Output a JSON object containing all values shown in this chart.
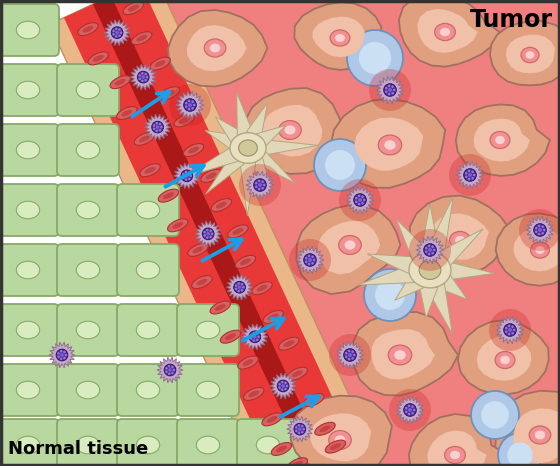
{
  "fig_width": 5.6,
  "fig_height": 4.66,
  "dpi": 100,
  "bg_color": "#f08080",
  "normal_tissue_bg": "#ffffff",
  "tumor_label": "Tumor",
  "normal_label": "Normal tissue",
  "arrow_color": "#1a9ee8",
  "tumor_cell_fill": "#e8a090",
  "tumor_cell_border": "#b07868",
  "normal_cell_fill": "#b8d8a0",
  "normal_cell_border": "#88a868",
  "blood_vessel_wall": "#e8b888",
  "blood_vessel_red": "#e03030",
  "blood_vessel_dark": "#aa1818",
  "rbc_fill": "#d86060",
  "rbc_dark": "#c03030",
  "immune_outer": "#c8b0c8",
  "immune_inner": "#5838a0",
  "blue_cell_fill": "#a8c0e0",
  "blue_cell_border": "#6880b0",
  "dendritic_fill": "#e8e0c8",
  "dendritic_border": "#c0b090"
}
